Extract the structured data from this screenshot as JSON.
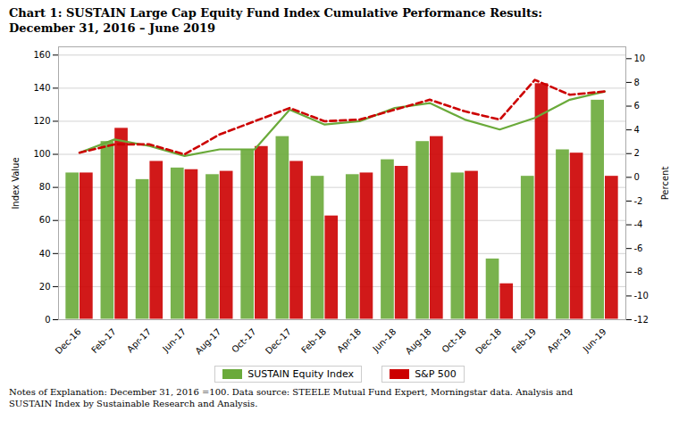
{
  "chart_data": {
    "type": "bar",
    "title": "Chart 1:  SUSTAIN Large Cap Equity Fund Index Cumulative Performance Results:",
    "subtitle": "December 31, 2016 – June 2019",
    "note": "Notes of Explanation:  December 31, 2016 =100.  Data source:  STEELE Mutual Fund Expert, Morningstar data. Analysis and\nSUSTAIN Index by Sustainable Research and Analysis.",
    "categories": [
      "Dec-16",
      "Feb-17",
      "Apr-17",
      "Jun-17",
      "Aug-17",
      "Oct-17",
      "Dec-17",
      "Feb-18",
      "Apr-18",
      "Jun-18",
      "Aug-18",
      "Oct-18",
      "Dec-18",
      "Feb-19",
      "Apr-19",
      "Jun-19"
    ],
    "series": [
      {
        "name": "SUSTAIN Equity Index",
        "type": "bar",
        "color": "#6aaa3a",
        "values": [
          89,
          108,
          85,
          92,
          88,
          103,
          111,
          87,
          88,
          97,
          108,
          89,
          37,
          87,
          103,
          133
        ]
      },
      {
        "name": "S&P 500",
        "type": "bar",
        "color": "#cc0000",
        "values": [
          89,
          116,
          96,
          91,
          90,
          105,
          96,
          63,
          89,
          93,
          111,
          90,
          22,
          143,
          101,
          87
        ]
      },
      {
        "name": "SUSTAIN Equity Index",
        "type": "line",
        "line_style": "solid",
        "color": "#6aaa3a",
        "values": [
          101,
          109,
          105,
          99,
          103,
          103,
          127,
          118,
          120,
          128,
          131,
          121,
          115,
          122,
          133,
          138
        ]
      },
      {
        "name": "S&P 500",
        "type": "line",
        "line_style": "dashed",
        "color": "#cc0000",
        "values": [
          101,
          106,
          106,
          100,
          112,
          120,
          128,
          120,
          121,
          127,
          133,
          126,
          121,
          145,
          136,
          138
        ]
      }
    ],
    "y_label": "Index Value",
    "y2_label": "Percent",
    "ylim": [
      0,
      165
    ],
    "yticks": [
      0,
      20,
      40,
      60,
      80,
      100,
      120,
      140,
      160
    ],
    "y2lim": [
      -12,
      11
    ],
    "y2ticks": [
      -12,
      -10,
      -8,
      -6,
      -4,
      -2,
      0,
      2,
      4,
      6,
      8,
      10
    ],
    "grid": true,
    "legend": "bottom"
  }
}
